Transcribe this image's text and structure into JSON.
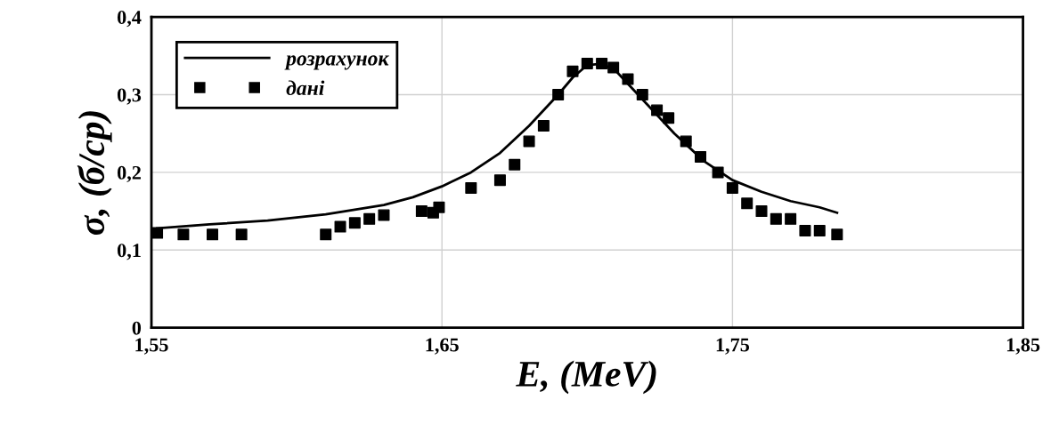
{
  "chart_data": {
    "type": "line",
    "xlabel": "E, (MeV)",
    "ylabel": "σ, (б/ср)",
    "xlim": [
      1.55,
      1.85
    ],
    "xticks": [
      {
        "value": 1.55,
        "label": "1,55"
      },
      {
        "value": 1.65,
        "label": "1,65"
      },
      {
        "value": 1.75,
        "label": "1,75"
      },
      {
        "value": 1.85,
        "label": "1,85"
      }
    ],
    "ylim": [
      0,
      0.4
    ],
    "yticks": [
      {
        "value": 0,
        "label": "0"
      },
      {
        "value": 0.1,
        "label": "0,1"
      },
      {
        "value": 0.2,
        "label": "0,2"
      },
      {
        "value": 0.3,
        "label": "0,3"
      },
      {
        "value": 0.4,
        "label": "0,4"
      }
    ],
    "grid": true,
    "legend": "top left",
    "series": [
      {
        "name": "розрахунок",
        "color": "#000000",
        "line_style": "solid",
        "marker": "none",
        "x": [
          1.552,
          1.57,
          1.59,
          1.61,
          1.63,
          1.64,
          1.65,
          1.66,
          1.67,
          1.68,
          1.69,
          1.695,
          1.7,
          1.705,
          1.71,
          1.72,
          1.73,
          1.74,
          1.75,
          1.76,
          1.77,
          1.78,
          1.786
        ],
        "values": [
          0.128,
          0.133,
          0.138,
          0.146,
          0.158,
          0.168,
          0.182,
          0.2,
          0.225,
          0.26,
          0.3,
          0.322,
          0.338,
          0.34,
          0.33,
          0.29,
          0.25,
          0.215,
          0.19,
          0.175,
          0.163,
          0.155,
          0.148
        ]
      },
      {
        "name": "дані",
        "type": "scatter",
        "color": "#000000",
        "marker": "square",
        "x": [
          1.552,
          1.561,
          1.571,
          1.581,
          1.61,
          1.615,
          1.62,
          1.625,
          1.63,
          1.643,
          1.647,
          1.649,
          1.66,
          1.67,
          1.675,
          1.68,
          1.685,
          1.69,
          1.695,
          1.7,
          1.705,
          1.709,
          1.714,
          1.719,
          1.724,
          1.728,
          1.734,
          1.739,
          1.745,
          1.75,
          1.755,
          1.76,
          1.765,
          1.77,
          1.775,
          1.78,
          1.786
        ],
        "values": [
          0.122,
          0.12,
          0.12,
          0.12,
          0.12,
          0.13,
          0.135,
          0.14,
          0.145,
          0.15,
          0.148,
          0.155,
          0.18,
          0.19,
          0.21,
          0.24,
          0.26,
          0.3,
          0.33,
          0.34,
          0.34,
          0.335,
          0.32,
          0.3,
          0.28,
          0.27,
          0.24,
          0.22,
          0.2,
          0.18,
          0.16,
          0.15,
          0.14,
          0.14,
          0.125,
          0.125,
          0.12
        ]
      }
    ]
  }
}
